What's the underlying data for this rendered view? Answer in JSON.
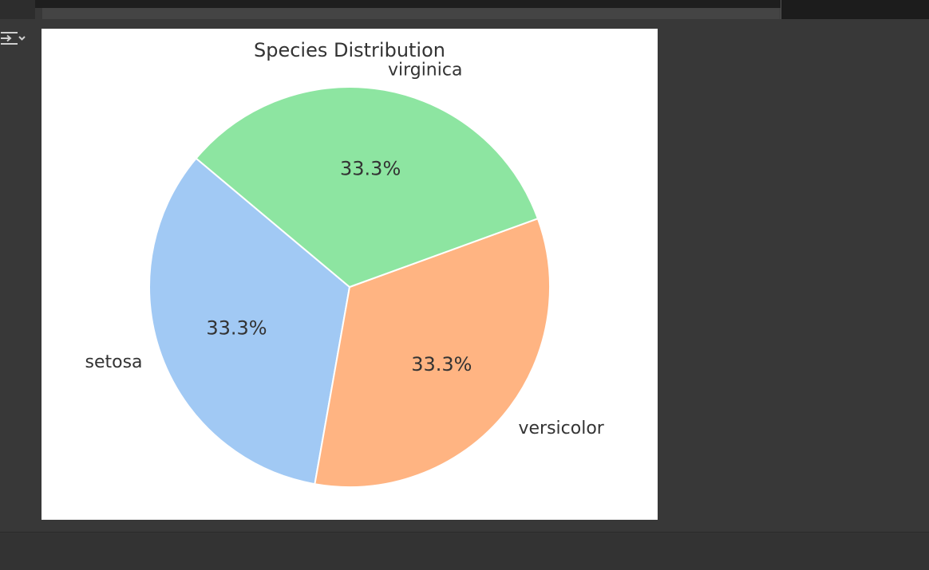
{
  "output": {
    "toggle_icon": "output-collapse-icon"
  },
  "chart_data": {
    "type": "pie",
    "title": "Species Distribution",
    "labels": [
      "setosa",
      "versicolor",
      "virginica"
    ],
    "values": [
      33.3,
      33.3,
      33.3
    ],
    "autopct_labels": [
      "33.3%",
      "33.3%",
      "33.3%"
    ],
    "colors": [
      "#a1c9f4",
      "#ffb482",
      "#8de5a1"
    ],
    "start_angle_deg": 140,
    "legend": "none"
  }
}
